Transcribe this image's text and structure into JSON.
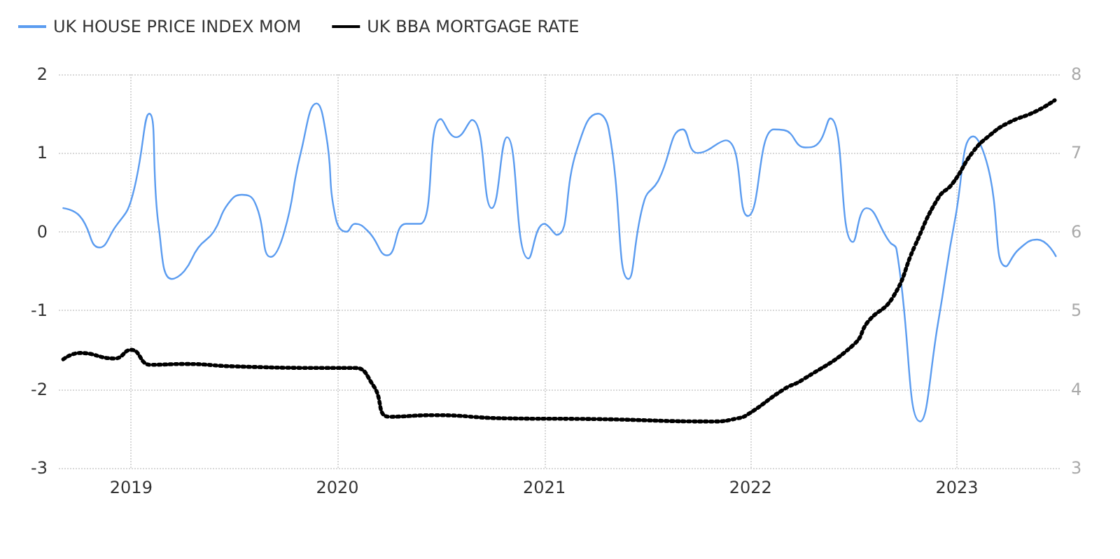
{
  "chart_data": {
    "type": "line",
    "series": [
      {
        "name": "UK HOUSE PRICE INDEX MOM",
        "color": "#5b9cf0",
        "line_style": "solid",
        "x": [
          "2018-09-03",
          "2018-10-02",
          "2018-11-06",
          "2018-12-03",
          "2019-01-01",
          "2019-02-02",
          "2019-02-19",
          "2019-03-14",
          "2019-04-05",
          "2019-04-30",
          "2019-05-27",
          "2019-06-21",
          "2019-07-16",
          "2019-08-08",
          "2019-09-05",
          "2019-09-29",
          "2019-10-28",
          "2019-11-25",
          "2019-12-12",
          "2019-12-29",
          "2020-01-17",
          "2020-02-01",
          "2020-02-25",
          "2020-03-29",
          "2020-05-01",
          "2020-05-26",
          "2020-07-02",
          "2020-07-29",
          "2020-08-26",
          "2020-09-30",
          "2020-10-27",
          "2020-12-04",
          "2021-01-01",
          "2021-01-23",
          "2021-02-28",
          "2021-04-06",
          "2021-04-25",
          "2021-05-30",
          "2021-06-27",
          "2021-07-21",
          "2021-09-03",
          "2021-09-29",
          "2021-11-18",
          "2021-12-27",
          "2022-02-11",
          "2022-03-01",
          "2022-04-08",
          "2022-04-27",
          "2022-05-22",
          "2022-07-01",
          "2022-07-25",
          "2022-09-04",
          "2022-09-16",
          "2022-10-28",
          "2022-11-29",
          "2022-12-29",
          "2023-01-30",
          "2023-02-25",
          "2023-03-29",
          "2023-04-21",
          "2023-05-23",
          "2023-06-25"
        ],
        "values": [
          0.3,
          0.2,
          -0.2,
          0.05,
          0.4,
          1.5,
          0.05,
          -0.6,
          -0.5,
          -0.2,
          0,
          0.35,
          0.47,
          0.37,
          -0.32,
          0,
          1.0,
          1.63,
          1.23,
          0.17,
          0,
          0.1,
          0,
          -0.3,
          0.1,
          0.1,
          1.43,
          1.2,
          1.42,
          0.3,
          1.2,
          -0.34,
          0.1,
          -0.04,
          1.05,
          1.5,
          1.3,
          -0.6,
          0.4,
          0.64,
          1.3,
          1.0,
          1.16,
          0.2,
          1.3,
          1.29,
          1.07,
          1.1,
          1.44,
          -0.13,
          0.3,
          -0.13,
          -0.22,
          -2.41,
          -1.14,
          0.17,
          1.21,
          0.82,
          -0.44,
          -0.22,
          -0.1,
          -0.31
        ]
      },
      {
        "name": "UK BBA MORTGAGE RATE",
        "color": "#000000",
        "line_style": "dotted",
        "axis": "y2",
        "x": [
          "2018-09-03",
          "2018-10-02",
          "2018-12-03",
          "2019-01-01",
          "2019-02-04",
          "2019-04-08",
          "2019-07-01",
          "2019-12-12",
          "2020-02-01",
          "2020-03-05",
          "2020-04-02",
          "2020-06-20",
          "2020-10-22",
          "2021-04-06",
          "2021-10-27",
          "2021-12-09",
          "2021-12-27",
          "2022-03-01",
          "2022-04-03",
          "2022-07-03",
          "2022-07-28",
          "2022-09-09",
          "2022-10-18",
          "2022-11-29",
          "2022-12-24",
          "2023-01-30",
          "2023-03-01",
          "2023-04-01",
          "2023-05-21",
          "2023-06-23"
        ],
        "values": [
          4.38,
          4.46,
          4.39,
          4.5,
          4.31,
          4.32,
          4.29,
          4.27,
          4.27,
          4.04,
          3.65,
          3.67,
          3.63,
          3.62,
          3.59,
          3.63,
          3.68,
          4.0,
          4.12,
          4.57,
          4.86,
          5.16,
          5.81,
          6.43,
          6.61,
          7.02,
          7.23,
          7.38,
          7.53,
          7.67
        ]
      }
    ],
    "xlim": [
      "2018-08-26",
      "2023-07-02"
    ],
    "xticks": [
      {
        "value": "2019",
        "label": "2019"
      },
      {
        "value": "2020",
        "label": "2020"
      },
      {
        "value": "2021",
        "label": "2021"
      },
      {
        "value": "2022",
        "label": "2022"
      },
      {
        "value": "2023",
        "label": "2023"
      }
    ],
    "ylim": [
      -3,
      2
    ],
    "yticks": [
      -3,
      -2,
      -1,
      0,
      1,
      2
    ],
    "y2lim": [
      3,
      8
    ],
    "y2ticks": [
      3,
      4,
      5,
      6,
      7,
      8
    ],
    "grid": true,
    "legend": "top left",
    "marker": "none"
  }
}
